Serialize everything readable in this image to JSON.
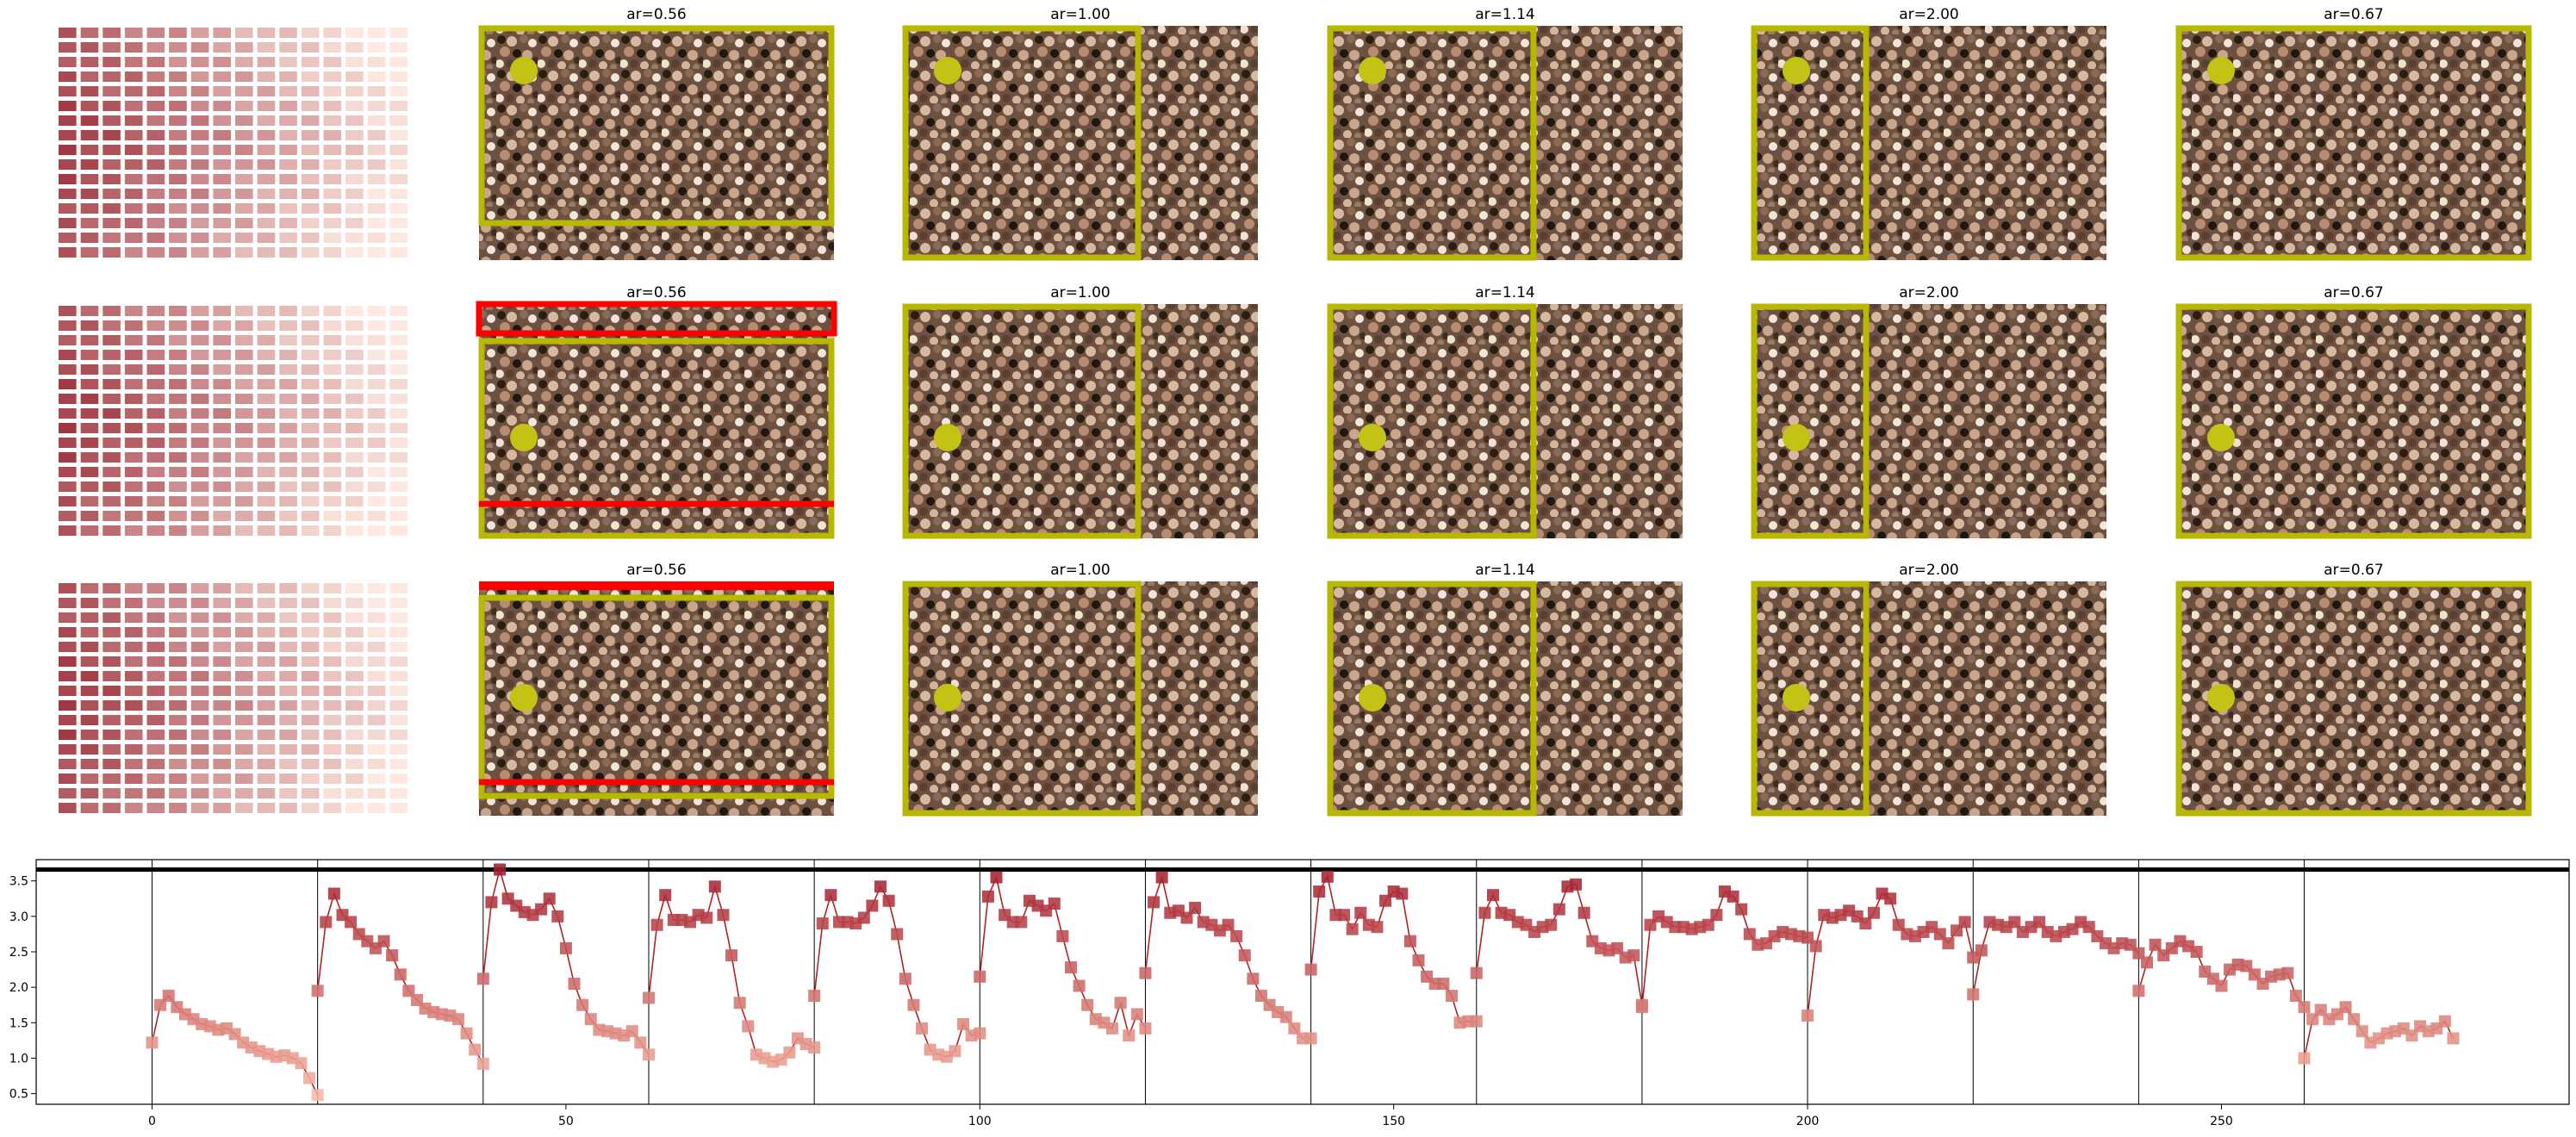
{
  "figure": {
    "rows": 3,
    "panel_titles": [
      "ar=0.56",
      "ar=1.00",
      "ar=1.14",
      "ar=2.00",
      "ar=0.67"
    ],
    "colors": {
      "crop_box": "#b8b800",
      "marker_dot": "#c3c316",
      "invalid_band": "#ff0000",
      "heat_dark": "#9c2f3a",
      "heat_light": "#fde9e1",
      "line": "#b22222"
    },
    "icons": [
      "crowd-photo-thumbnail",
      "heatmap-grid"
    ]
  },
  "chart_data": {
    "type": "line",
    "title": "",
    "xlabel": "",
    "ylabel": "",
    "xlim": [
      -14,
      292
    ],
    "ylim": [
      0.35,
      3.8
    ],
    "xticks": [
      0,
      50,
      100,
      150,
      200,
      250
    ],
    "yticks": [
      0.5,
      1.0,
      1.5,
      2.0,
      2.5,
      3.0,
      3.5
    ],
    "xtick_labels": [
      "0",
      "50",
      "100",
      "150",
      "200",
      "250"
    ],
    "ytick_labels": [
      "0.5",
      "1.0",
      "1.5",
      "2.0",
      "2.5",
      "3.0",
      "3.5"
    ],
    "hline": 3.66,
    "vlines": [
      0,
      20,
      40,
      60,
      80,
      100,
      120,
      140,
      160,
      180,
      200,
      220,
      240,
      260
    ],
    "grid": false,
    "legend": "none",
    "segments": [
      {
        "x0": 0,
        "y": [
          1.22,
          1.75,
          1.88,
          1.72,
          1.62,
          1.55,
          1.48,
          1.45,
          1.4,
          1.42,
          1.34,
          1.22,
          1.15,
          1.1,
          1.06,
          1.02,
          1.04,
          1.0,
          0.93,
          0.72,
          0.48
        ]
      },
      {
        "x0": 20,
        "y": [
          1.95,
          2.92,
          3.32,
          3.02,
          2.92,
          2.75,
          2.65,
          2.55,
          2.65,
          2.45,
          2.18,
          1.95,
          1.82,
          1.7,
          1.65,
          1.62,
          1.6,
          1.55,
          1.35,
          1.12,
          0.92
        ]
      },
      {
        "x0": 40,
        "y": [
          2.12,
          3.2,
          3.66,
          3.25,
          3.15,
          3.06,
          3.02,
          3.1,
          3.25,
          3.0,
          2.55,
          2.05,
          1.75,
          1.55,
          1.4,
          1.38,
          1.35,
          1.32,
          1.38,
          1.22,
          1.05
        ]
      },
      {
        "x0": 60,
        "y": [
          1.85,
          2.88,
          3.3,
          2.95,
          2.95,
          2.92,
          3.02,
          2.98,
          3.42,
          3.02,
          2.45,
          1.78,
          1.45,
          1.05,
          1.0,
          0.95,
          0.98,
          1.08,
          1.28,
          1.2,
          1.15
        ]
      },
      {
        "x0": 80,
        "y": [
          1.88,
          2.9,
          3.3,
          2.92,
          2.92,
          2.9,
          2.98,
          3.15,
          3.42,
          3.22,
          2.75,
          2.12,
          1.75,
          1.42,
          1.12,
          1.05,
          1.02,
          1.1,
          1.48,
          1.32,
          1.35
        ]
      },
      {
        "x0": 100,
        "y": [
          2.15,
          3.28,
          3.55,
          3.02,
          2.92,
          2.92,
          3.22,
          3.15,
          3.08,
          3.18,
          2.72,
          2.28,
          2.02,
          1.75,
          1.55,
          1.5,
          1.42,
          1.78,
          1.32,
          1.62,
          1.42
        ]
      },
      {
        "x0": 120,
        "y": [
          2.2,
          3.2,
          3.55,
          3.05,
          3.08,
          2.98,
          3.12,
          2.92,
          2.88,
          2.8,
          2.88,
          2.72,
          2.45,
          2.12,
          1.88,
          1.75,
          1.65,
          1.58,
          1.42,
          1.28,
          1.28
        ]
      },
      {
        "x0": 140,
        "y": [
          2.25,
          3.35,
          3.56,
          3.02,
          3.02,
          2.82,
          3.05,
          2.88,
          2.85,
          3.22,
          3.35,
          3.32,
          2.65,
          2.38,
          2.15,
          2.05,
          2.05,
          1.88,
          1.5,
          1.52,
          1.52
        ]
      },
      {
        "x0": 160,
        "y": [
          2.2,
          3.05,
          3.3,
          3.05,
          3.02,
          2.92,
          2.88,
          2.78,
          2.85,
          2.88,
          3.1,
          3.42,
          3.45,
          3.05,
          2.65,
          2.55,
          2.52,
          2.55,
          2.42,
          2.45,
          1.75
        ]
      },
      {
        "x0": 180,
        "y": [
          1.72,
          2.88,
          3.0,
          2.92,
          2.85,
          2.85,
          2.82,
          2.85,
          2.88,
          3.02,
          3.35,
          3.28,
          3.1,
          2.75,
          2.6,
          2.62,
          2.72,
          2.78,
          2.75,
          2.72,
          2.7
        ]
      },
      {
        "x0": 200,
        "y": [
          1.6,
          2.58,
          3.02,
          2.98,
          3.02,
          3.08,
          3.0,
          2.9,
          3.05,
          3.32,
          3.25,
          2.88,
          2.75,
          2.72,
          2.78,
          2.85,
          2.75,
          2.62,
          2.8,
          2.92,
          2.42
        ]
      },
      {
        "x0": 220,
        "y": [
          1.9,
          2.52,
          2.92,
          2.88,
          2.85,
          2.92,
          2.78,
          2.85,
          2.92,
          2.78,
          2.72,
          2.78,
          2.82,
          2.92,
          2.85,
          2.72,
          2.62,
          2.55,
          2.62,
          2.6,
          2.48
        ]
      },
      {
        "x0": 240,
        "y": [
          1.95,
          2.35,
          2.6,
          2.45,
          2.55,
          2.65,
          2.58,
          2.5,
          2.22,
          2.12,
          2.02,
          2.25,
          2.32,
          2.3,
          2.18,
          2.05,
          2.15,
          2.18,
          2.2,
          1.88,
          1.72
        ]
      },
      {
        "x0": 260,
        "y": [
          1.0,
          1.55,
          1.68,
          1.55,
          1.62,
          1.72,
          1.55,
          1.38,
          1.22,
          1.28,
          1.35,
          1.38,
          1.42,
          1.32,
          1.45,
          1.38,
          1.42,
          1.52,
          1.28
        ]
      }
    ]
  }
}
